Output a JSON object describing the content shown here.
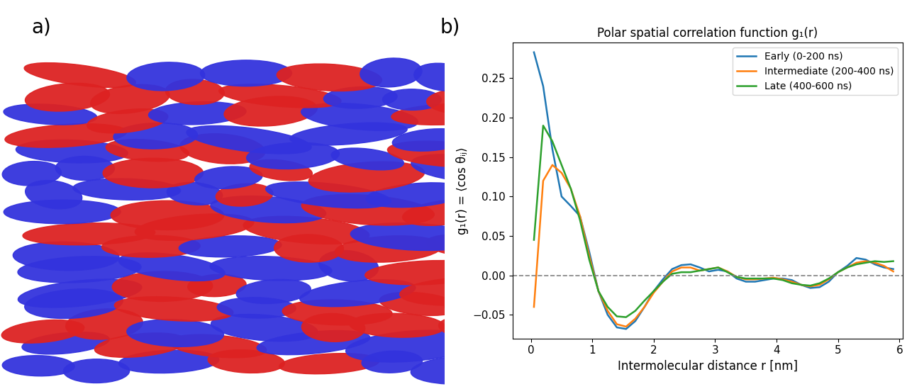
{
  "panel_labels": [
    "a)",
    "b)"
  ],
  "chart_data": {
    "type": "line",
    "title": "Polar spatial correlation function g₁(r)",
    "x_label": "Intermolecular distance r [nm]",
    "y_label": "g₁(r) = ⟨cos θᵢⱼ⟩",
    "x": [
      0.05,
      0.2,
      0.35,
      0.5,
      0.65,
      0.8,
      0.95,
      1.1,
      1.25,
      1.4,
      1.55,
      1.7,
      1.85,
      2.0,
      2.15,
      2.3,
      2.45,
      2.6,
      2.75,
      2.9,
      3.05,
      3.2,
      3.35,
      3.5,
      3.65,
      3.8,
      3.95,
      4.1,
      4.25,
      4.4,
      4.55,
      4.7,
      4.85,
      5.0,
      5.15,
      5.3,
      5.45,
      5.6,
      5.75,
      5.9
    ],
    "series": [
      {
        "name": "Early (0-200 ns)",
        "color": "#1f77b4",
        "values": [
          0.283,
          0.24,
          0.16,
          0.1,
          0.088,
          0.075,
          0.03,
          -0.02,
          -0.05,
          -0.066,
          -0.068,
          -0.058,
          -0.04,
          -0.02,
          -0.005,
          0.008,
          0.013,
          0.014,
          0.01,
          0.005,
          0.007,
          0.005,
          -0.004,
          -0.008,
          -0.008,
          -0.006,
          -0.004,
          -0.004,
          -0.006,
          -0.012,
          -0.016,
          -0.015,
          -0.008,
          0.004,
          0.012,
          0.022,
          0.02,
          0.014,
          0.01,
          0.008
        ]
      },
      {
        "name": "Intermediate (200-400 ns)",
        "color": "#ff7f0e",
        "values": [
          -0.04,
          0.12,
          0.14,
          0.13,
          0.11,
          0.075,
          0.025,
          -0.02,
          -0.045,
          -0.062,
          -0.065,
          -0.055,
          -0.04,
          -0.022,
          -0.008,
          0.005,
          0.01,
          0.01,
          0.006,
          0.008,
          0.01,
          0.005,
          -0.002,
          -0.005,
          -0.005,
          -0.004,
          -0.003,
          -0.005,
          -0.008,
          -0.012,
          -0.014,
          -0.012,
          -0.005,
          0.004,
          0.01,
          0.016,
          0.018,
          0.016,
          0.012,
          0.005
        ]
      },
      {
        "name": "Late (400-600 ns)",
        "color": "#2ca02c",
        "values": [
          0.045,
          0.19,
          0.17,
          0.14,
          0.11,
          0.07,
          0.02,
          -0.02,
          -0.04,
          -0.052,
          -0.053,
          -0.045,
          -0.032,
          -0.02,
          -0.008,
          0.002,
          0.004,
          0.004,
          0.006,
          0.008,
          0.01,
          0.004,
          -0.002,
          -0.004,
          -0.004,
          -0.004,
          -0.004,
          -0.006,
          -0.01,
          -0.012,
          -0.013,
          -0.01,
          -0.004,
          0.004,
          0.01,
          0.014,
          0.016,
          0.018,
          0.017,
          0.018
        ]
      }
    ],
    "hlines": [
      0
    ],
    "xlim": [
      -0.3,
      6.05
    ],
    "ylim": [
      -0.08,
      0.295
    ],
    "xticks": [
      0,
      1,
      2,
      3,
      4,
      5,
      6
    ],
    "yticks": [
      {
        "value": -0.05,
        "label": "−0.05"
      },
      {
        "value": 0,
        "label": "0.00"
      },
      {
        "value": 0.05,
        "label": "0.05"
      },
      {
        "value": 0.1,
        "label": "0.10"
      },
      {
        "value": 0.15,
        "label": "0.15"
      },
      {
        "value": 0.2,
        "label": "0.20"
      },
      {
        "value": 0.25,
        "label": "0.25"
      }
    ],
    "legend": "upper right",
    "grid": false
  }
}
